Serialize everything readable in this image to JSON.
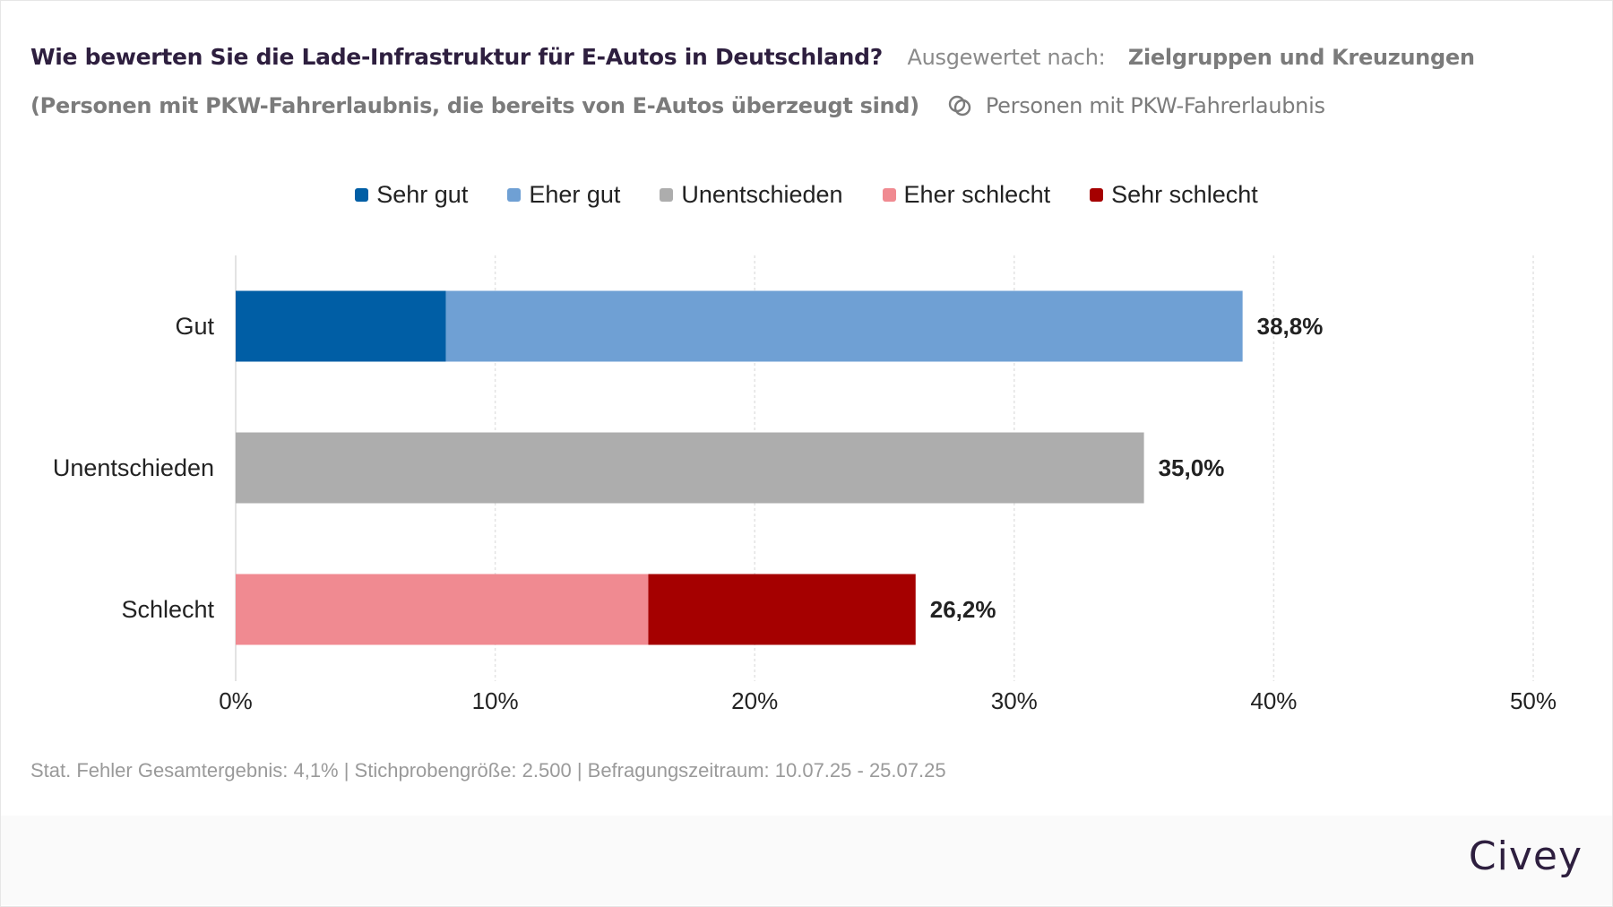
{
  "header": {
    "title": "Wie bewerten Sie die Lade-Infrastruktur für E-Autos in Deutschland?",
    "evaluated_by_label": "Ausgewertet nach:",
    "evaluated_by_value": "Zielgruppen und Kreuzungen",
    "subtitle": "(Personen mit PKW-Fahrerlaubnis, die bereits von E-Autos überzeugt sind)",
    "filter_icon": "intersect-circles-icon",
    "filter_label": "Personen mit PKW-Fahrerlaubnis"
  },
  "chart_data": {
    "type": "bar",
    "orientation": "horizontal",
    "stacked": true,
    "title": "Wie bewerten Sie die Lade-Infrastruktur für E-Autos in Deutschland?",
    "categories": [
      "Gut",
      "Unentschieden",
      "Schlecht"
    ],
    "series": [
      {
        "name": "Sehr gut",
        "color": "#005ea5",
        "values": [
          8.1,
          0,
          0
        ]
      },
      {
        "name": "Eher gut",
        "color": "#6fa0d4",
        "values": [
          30.7,
          0,
          0
        ]
      },
      {
        "name": "Unentschieden",
        "color": "#adadad",
        "values": [
          0,
          35.0,
          0
        ]
      },
      {
        "name": "Eher schlecht",
        "color": "#f08a91",
        "values": [
          0,
          0,
          15.9
        ]
      },
      {
        "name": "Sehr schlecht",
        "color": "#a50000",
        "values": [
          0,
          0,
          10.3
        ]
      }
    ],
    "totals": [
      38.8,
      35.0,
      26.2
    ],
    "total_labels": [
      "38,8%",
      "35,0%",
      "26,2%"
    ],
    "xlim": [
      0,
      50
    ],
    "xticks": [
      0,
      10,
      20,
      30,
      40,
      50
    ],
    "xtick_labels": [
      "0%",
      "10%",
      "20%",
      "30%",
      "40%",
      "50%"
    ],
    "xlabel": "",
    "ylabel": "",
    "grid": true,
    "legend_position": "top-center"
  },
  "footer": {
    "meta": "Stat. Fehler Gesamtergebnis: 4,1% | Stichprobengröße: 2.500 | Befragungszeitraum: 10.07.25 - 25.07.25",
    "brand": "Civey"
  }
}
